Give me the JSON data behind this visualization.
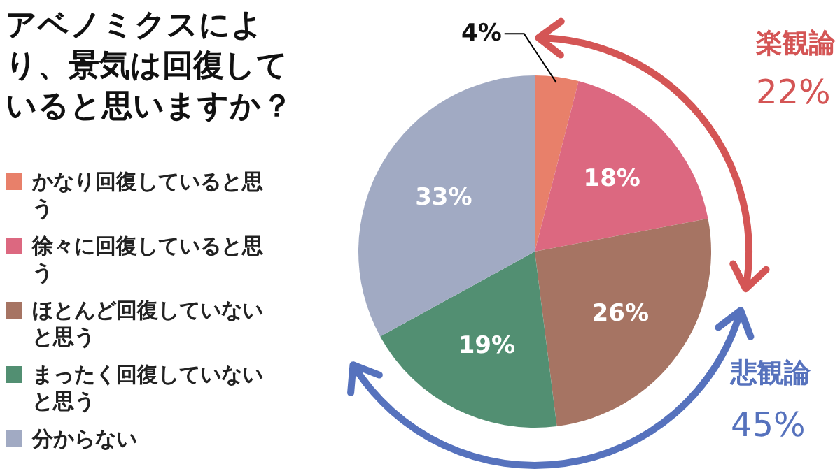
{
  "chart_data": {
    "type": "pie",
    "title": "アベノミクスにより、景気は回復していると思いますか？",
    "categories": [
      "かなり回復していると思う",
      "徐々に回復していると思う",
      "ほとんど回復していないと思う",
      "まったく回復していないと思う",
      "分からない"
    ],
    "values": [
      4,
      18,
      26,
      19,
      33
    ],
    "colors": [
      "#e8806a",
      "#dc6880",
      "#a67463",
      "#528f72",
      "#a1aac3"
    ],
    "value_labels": [
      "4%",
      "18%",
      "26%",
      "19%",
      "33%"
    ],
    "annotations": [
      "楽観論",
      "22%",
      "悲観論",
      "45%"
    ],
    "legend": "left"
  }
}
